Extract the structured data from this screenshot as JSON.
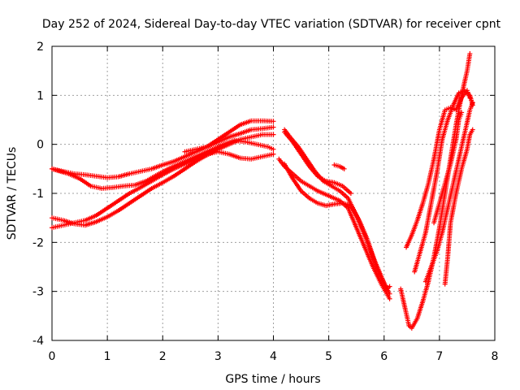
{
  "chart_data": {
    "type": "scatter",
    "title": "Day 252 of 2024, Sidereal Day-to-day VTEC variation (SDTVAR) for receiver cpnt",
    "xlabel": "GPS time / hours",
    "ylabel": "SDTVAR / TECUs",
    "xlim": [
      0,
      8
    ],
    "ylim": [
      -4,
      2
    ],
    "xticks": [
      0,
      1,
      2,
      3,
      4,
      5,
      6,
      7,
      8
    ],
    "yticks": [
      -4,
      -3,
      -2,
      -1,
      0,
      1,
      2
    ],
    "grid": true,
    "marker": "+",
    "color": "#ff0000",
    "series": [
      {
        "name": "track-1",
        "points": [
          [
            0.0,
            -0.5
          ],
          [
            0.2,
            -0.55
          ],
          [
            0.4,
            -0.6
          ],
          [
            0.6,
            -0.62
          ],
          [
            0.8,
            -0.65
          ],
          [
            1.0,
            -0.68
          ],
          [
            1.2,
            -0.66
          ],
          [
            1.4,
            -0.6
          ],
          [
            1.6,
            -0.55
          ],
          [
            1.8,
            -0.5
          ],
          [
            2.0,
            -0.42
          ],
          [
            2.2,
            -0.35
          ],
          [
            2.4,
            -0.25
          ],
          [
            2.6,
            -0.15
          ],
          [
            2.8,
            -0.05
          ],
          [
            3.0,
            0.05
          ],
          [
            3.2,
            0.15
          ],
          [
            3.4,
            0.22
          ],
          [
            3.6,
            0.3
          ],
          [
            3.8,
            0.32
          ],
          [
            4.0,
            0.35
          ]
        ]
      },
      {
        "name": "track-2",
        "points": [
          [
            0.0,
            -0.5
          ],
          [
            0.3,
            -0.6
          ],
          [
            0.5,
            -0.7
          ],
          [
            0.7,
            -0.85
          ],
          [
            0.9,
            -0.9
          ],
          [
            1.1,
            -0.88
          ],
          [
            1.3,
            -0.85
          ],
          [
            1.5,
            -0.83
          ],
          [
            1.7,
            -0.75
          ],
          [
            1.9,
            -0.62
          ],
          [
            2.1,
            -0.5
          ],
          [
            2.3,
            -0.4
          ],
          [
            2.5,
            -0.3
          ],
          [
            2.7,
            -0.2
          ],
          [
            2.9,
            -0.1
          ],
          [
            3.1,
            0.0
          ],
          [
            3.3,
            0.08
          ],
          [
            3.5,
            0.05
          ],
          [
            3.7,
            0.0
          ],
          [
            3.9,
            -0.05
          ],
          [
            4.0,
            -0.1
          ]
        ]
      },
      {
        "name": "track-3",
        "points": [
          [
            0.0,
            -1.5
          ],
          [
            0.2,
            -1.55
          ],
          [
            0.4,
            -1.62
          ],
          [
            0.6,
            -1.65
          ],
          [
            0.8,
            -1.58
          ],
          [
            1.0,
            -1.48
          ],
          [
            1.2,
            -1.35
          ],
          [
            1.4,
            -1.2
          ],
          [
            1.6,
            -1.05
          ],
          [
            1.8,
            -0.9
          ],
          [
            2.0,
            -0.78
          ],
          [
            2.2,
            -0.65
          ],
          [
            2.4,
            -0.5
          ],
          [
            2.6,
            -0.35
          ],
          [
            2.8,
            -0.22
          ],
          [
            3.0,
            -0.1
          ],
          [
            3.2,
            0.0
          ],
          [
            3.4,
            0.1
          ],
          [
            3.6,
            0.15
          ],
          [
            3.8,
            0.2
          ],
          [
            4.0,
            0.2
          ]
        ]
      },
      {
        "name": "track-4",
        "points": [
          [
            0.0,
            -1.7
          ],
          [
            0.2,
            -1.65
          ],
          [
            0.4,
            -1.6
          ],
          [
            0.6,
            -1.55
          ],
          [
            0.8,
            -1.45
          ],
          [
            1.0,
            -1.3
          ],
          [
            1.2,
            -1.15
          ],
          [
            1.4,
            -1.0
          ],
          [
            1.6,
            -0.88
          ],
          [
            1.8,
            -0.75
          ],
          [
            2.0,
            -0.62
          ],
          [
            2.2,
            -0.5
          ],
          [
            2.4,
            -0.4
          ],
          [
            2.6,
            -0.3
          ],
          [
            2.8,
            -0.2
          ],
          [
            3.0,
            -0.15
          ],
          [
            3.2,
            -0.2
          ],
          [
            3.4,
            -0.28
          ],
          [
            3.6,
            -0.3
          ],
          [
            3.8,
            -0.25
          ],
          [
            4.0,
            -0.2
          ]
        ]
      },
      {
        "name": "track-5",
        "points": [
          [
            2.4,
            -0.15
          ],
          [
            2.6,
            -0.1
          ],
          [
            2.8,
            -0.05
          ],
          [
            3.0,
            0.1
          ],
          [
            3.2,
            0.25
          ],
          [
            3.4,
            0.4
          ],
          [
            3.6,
            0.48
          ],
          [
            3.8,
            0.48
          ],
          [
            4.0,
            0.47
          ]
        ]
      },
      {
        "name": "track-6",
        "points": [
          [
            4.1,
            -0.3
          ],
          [
            4.2,
            -0.45
          ],
          [
            4.35,
            -0.6
          ],
          [
            4.5,
            -0.75
          ],
          [
            4.65,
            -0.85
          ],
          [
            4.8,
            -0.95
          ],
          [
            5.0,
            -1.05
          ],
          [
            5.2,
            -1.15
          ],
          [
            5.35,
            -1.3
          ],
          [
            5.5,
            -1.7
          ],
          [
            5.65,
            -2.1
          ],
          [
            5.8,
            -2.5
          ],
          [
            5.95,
            -2.85
          ],
          [
            6.05,
            -3.05
          ],
          [
            6.1,
            -3.15
          ]
        ]
      },
      {
        "name": "track-7",
        "points": [
          [
            4.2,
            0.3
          ],
          [
            4.3,
            0.15
          ],
          [
            4.45,
            -0.05
          ],
          [
            4.6,
            -0.3
          ],
          [
            4.75,
            -0.55
          ],
          [
            4.9,
            -0.75
          ],
          [
            5.05,
            -0.85
          ],
          [
            5.2,
            -0.95
          ],
          [
            5.35,
            -1.1
          ],
          [
            5.5,
            -1.45
          ],
          [
            5.65,
            -1.85
          ],
          [
            5.8,
            -2.3
          ],
          [
            5.95,
            -2.7
          ],
          [
            6.05,
            -2.95
          ],
          [
            6.1,
            -2.9
          ]
        ]
      },
      {
        "name": "track-8",
        "points": [
          [
            4.2,
            -0.4
          ],
          [
            4.35,
            -0.7
          ],
          [
            4.5,
            -0.95
          ],
          [
            4.65,
            -1.1
          ],
          [
            4.8,
            -1.2
          ],
          [
            4.95,
            -1.25
          ],
          [
            5.1,
            -1.22
          ],
          [
            5.25,
            -1.2
          ],
          [
            5.4,
            -1.25
          ],
          [
            5.55,
            -1.55
          ],
          [
            5.7,
            -1.95
          ],
          [
            5.85,
            -2.45
          ],
          [
            6.0,
            -2.85
          ],
          [
            6.1,
            -3.05
          ]
        ]
      },
      {
        "name": "track-9",
        "points": [
          [
            4.2,
            0.25
          ],
          [
            4.35,
            0.05
          ],
          [
            4.5,
            -0.2
          ],
          [
            4.65,
            -0.45
          ],
          [
            4.8,
            -0.65
          ],
          [
            4.95,
            -0.75
          ],
          [
            5.1,
            -0.78
          ],
          [
            5.25,
            -0.85
          ],
          [
            5.4,
            -1.0
          ]
        ]
      },
      {
        "name": "track-10",
        "points": [
          [
            5.1,
            -0.42
          ],
          [
            5.2,
            -0.45
          ],
          [
            5.28,
            -0.5
          ]
        ]
      },
      {
        "name": "track-11",
        "points": [
          [
            6.3,
            -2.95
          ],
          [
            6.4,
            -3.45
          ],
          [
            6.45,
            -3.7
          ],
          [
            6.5,
            -3.75
          ],
          [
            6.6,
            -3.55
          ],
          [
            6.7,
            -3.2
          ],
          [
            6.8,
            -2.8
          ],
          [
            6.9,
            -2.3
          ],
          [
            7.0,
            -1.7
          ],
          [
            7.1,
            -1.0
          ],
          [
            7.2,
            -0.3
          ],
          [
            7.3,
            0.4
          ],
          [
            7.4,
            1.0
          ],
          [
            7.5,
            1.5
          ],
          [
            7.55,
            1.85
          ]
        ]
      },
      {
        "name": "track-12",
        "points": [
          [
            6.4,
            -2.1
          ],
          [
            6.5,
            -1.85
          ],
          [
            6.6,
            -1.55
          ],
          [
            6.7,
            -1.2
          ],
          [
            6.8,
            -0.8
          ],
          [
            6.9,
            -0.3
          ],
          [
            7.0,
            0.3
          ],
          [
            7.1,
            0.7
          ],
          [
            7.2,
            0.75
          ],
          [
            7.3,
            0.7
          ],
          [
            7.4,
            0.95
          ],
          [
            7.5,
            1.1
          ],
          [
            7.55,
            0.95
          ]
        ]
      },
      {
        "name": "track-13",
        "points": [
          [
            6.55,
            -2.6
          ],
          [
            6.65,
            -2.2
          ],
          [
            6.75,
            -1.8
          ],
          [
            6.85,
            -1.2
          ],
          [
            6.95,
            -0.6
          ],
          [
            7.05,
            0.1
          ],
          [
            7.15,
            0.5
          ],
          [
            7.25,
            0.8
          ],
          [
            7.35,
            1.05
          ],
          [
            7.45,
            1.1
          ],
          [
            7.55,
            1.0
          ],
          [
            7.6,
            0.8
          ]
        ]
      },
      {
        "name": "track-14",
        "points": [
          [
            6.75,
            -2.8
          ],
          [
            6.85,
            -2.5
          ],
          [
            6.95,
            -2.2
          ],
          [
            7.05,
            -1.8
          ],
          [
            7.15,
            -1.3
          ],
          [
            7.25,
            -0.8
          ],
          [
            7.35,
            -0.3
          ],
          [
            7.45,
            0.2
          ],
          [
            7.55,
            0.7
          ],
          [
            7.6,
            0.85
          ]
        ]
      },
      {
        "name": "track-15",
        "points": [
          [
            7.1,
            -2.85
          ],
          [
            7.15,
            -2.3
          ],
          [
            7.2,
            -1.6
          ],
          [
            7.3,
            -1.0
          ],
          [
            7.4,
            -0.5
          ],
          [
            7.5,
            -0.1
          ],
          [
            7.55,
            0.2
          ],
          [
            7.6,
            0.3
          ]
        ]
      },
      {
        "name": "track-16",
        "points": [
          [
            6.9,
            -1.6
          ],
          [
            7.0,
            -1.2
          ],
          [
            7.1,
            -0.8
          ],
          [
            7.2,
            -0.4
          ],
          [
            7.3,
            0.1
          ],
          [
            7.35,
            0.5
          ],
          [
            7.4,
            0.65
          ]
        ]
      }
    ]
  }
}
